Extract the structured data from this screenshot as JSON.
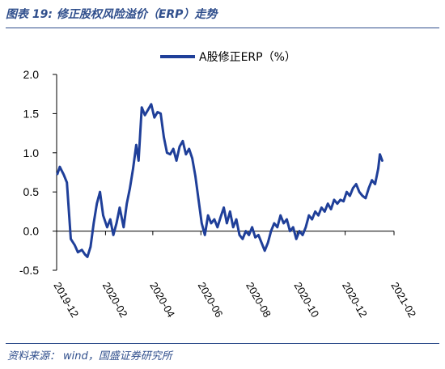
{
  "figure": {
    "title": "图表 19:  修正股权风险溢价（ERP）走势",
    "source_label": "资料来源：",
    "source_text": "wind，国盛证券研究所"
  },
  "colors": {
    "series": "#1f3f99",
    "accent": "#2f4e8c",
    "axis": "#000000"
  },
  "chart_data": {
    "type": "line",
    "title": "",
    "xlabel": "",
    "ylabel": "",
    "ylim": [
      -0.5,
      2.0
    ],
    "yticks": [
      "2.0",
      "1.5",
      "1.0",
      "0.5",
      "0.0",
      "-0.5"
    ],
    "xlim": [
      "2019-12",
      "2021-02"
    ],
    "xticks": [
      "2019-12",
      "2020-02",
      "2020-04",
      "2020-06",
      "2020-08",
      "2020-10",
      "2020-12",
      "2021-02"
    ],
    "grid": false,
    "legend_position": "top-center",
    "series": [
      {
        "name": "A股修正ERP（%）",
        "color": "#1f3f99",
        "points": [
          [
            "2019-12-02",
            0.73
          ],
          [
            "2019-12-05",
            0.82
          ],
          [
            "2019-12-10",
            0.72
          ],
          [
            "2019-12-14",
            0.62
          ],
          [
            "2019-12-19",
            -0.1
          ],
          [
            "2019-12-24",
            -0.18
          ],
          [
            "2019-12-28",
            -0.27
          ],
          [
            "2020-01-02",
            -0.24
          ],
          [
            "2020-01-06",
            -0.3
          ],
          [
            "2020-01-09",
            -0.33
          ],
          [
            "2020-01-13",
            -0.2
          ],
          [
            "2020-01-17",
            0.1
          ],
          [
            "2020-01-21",
            0.35
          ],
          [
            "2020-01-25",
            0.5
          ],
          [
            "2020-01-29",
            0.2
          ],
          [
            "2020-02-03",
            0.05
          ],
          [
            "2020-02-07",
            0.15
          ],
          [
            "2020-02-11",
            -0.05
          ],
          [
            "2020-02-15",
            0.1
          ],
          [
            "2020-02-19",
            0.3
          ],
          [
            "2020-02-24",
            0.05
          ],
          [
            "2020-02-28",
            0.35
          ],
          [
            "2020-03-03",
            0.55
          ],
          [
            "2020-03-07",
            0.8
          ],
          [
            "2020-03-11",
            1.1
          ],
          [
            "2020-03-14",
            0.9
          ],
          [
            "2020-03-18",
            1.58
          ],
          [
            "2020-03-22",
            1.48
          ],
          [
            "2020-03-26",
            1.55
          ],
          [
            "2020-03-30",
            1.62
          ],
          [
            "2020-04-03",
            1.45
          ],
          [
            "2020-04-07",
            1.52
          ],
          [
            "2020-04-11",
            1.5
          ],
          [
            "2020-04-15",
            1.2
          ],
          [
            "2020-04-19",
            1.0
          ],
          [
            "2020-04-23",
            0.98
          ],
          [
            "2020-04-27",
            1.05
          ],
          [
            "2020-05-01",
            0.9
          ],
          [
            "2020-05-05",
            1.08
          ],
          [
            "2020-05-09",
            1.15
          ],
          [
            "2020-05-13",
            0.98
          ],
          [
            "2020-05-17",
            1.05
          ],
          [
            "2020-05-21",
            0.93
          ],
          [
            "2020-05-25",
            0.7
          ],
          [
            "2020-05-29",
            0.4
          ],
          [
            "2020-06-02",
            0.1
          ],
          [
            "2020-06-06",
            -0.05
          ],
          [
            "2020-06-10",
            0.2
          ],
          [
            "2020-06-14",
            0.1
          ],
          [
            "2020-06-18",
            0.15
          ],
          [
            "2020-06-22",
            0.05
          ],
          [
            "2020-06-26",
            0.18
          ],
          [
            "2020-06-30",
            0.3
          ],
          [
            "2020-07-04",
            0.1
          ],
          [
            "2020-07-08",
            0.25
          ],
          [
            "2020-07-12",
            0.05
          ],
          [
            "2020-07-16",
            0.15
          ],
          [
            "2020-07-20",
            -0.05
          ],
          [
            "2020-07-24",
            -0.1
          ],
          [
            "2020-07-28",
            0.0
          ],
          [
            "2020-08-01",
            -0.05
          ],
          [
            "2020-08-05",
            0.05
          ],
          [
            "2020-08-09",
            -0.08
          ],
          [
            "2020-08-13",
            -0.05
          ],
          [
            "2020-08-17",
            -0.15
          ],
          [
            "2020-08-21",
            -0.25
          ],
          [
            "2020-08-25",
            -0.15
          ],
          [
            "2020-08-29",
            0.0
          ],
          [
            "2020-09-02",
            0.1
          ],
          [
            "2020-09-06",
            0.05
          ],
          [
            "2020-09-10",
            0.2
          ],
          [
            "2020-09-14",
            0.1
          ],
          [
            "2020-09-18",
            0.15
          ],
          [
            "2020-09-22",
            0.0
          ],
          [
            "2020-09-26",
            0.05
          ],
          [
            "2020-09-30",
            -0.1
          ],
          [
            "2020-10-04",
            0.0
          ],
          [
            "2020-10-08",
            -0.05
          ],
          [
            "2020-10-12",
            0.05
          ],
          [
            "2020-10-16",
            0.2
          ],
          [
            "2020-10-20",
            0.15
          ],
          [
            "2020-10-24",
            0.25
          ],
          [
            "2020-10-28",
            0.2
          ],
          [
            "2020-11-01",
            0.3
          ],
          [
            "2020-11-05",
            0.25
          ],
          [
            "2020-11-09",
            0.35
          ],
          [
            "2020-11-13",
            0.28
          ],
          [
            "2020-11-17",
            0.4
          ],
          [
            "2020-11-21",
            0.35
          ],
          [
            "2020-11-25",
            0.4
          ],
          [
            "2020-11-29",
            0.38
          ],
          [
            "2020-12-03",
            0.5
          ],
          [
            "2020-12-07",
            0.45
          ],
          [
            "2020-12-11",
            0.55
          ],
          [
            "2020-12-15",
            0.6
          ],
          [
            "2020-12-19",
            0.5
          ],
          [
            "2020-12-23",
            0.45
          ],
          [
            "2020-12-27",
            0.42
          ],
          [
            "2020-12-31",
            0.55
          ],
          [
            "2021-01-04",
            0.65
          ],
          [
            "2021-01-08",
            0.6
          ],
          [
            "2021-01-12",
            0.8
          ],
          [
            "2021-01-14",
            0.98
          ],
          [
            "2021-01-17",
            0.9
          ]
        ]
      }
    ]
  }
}
